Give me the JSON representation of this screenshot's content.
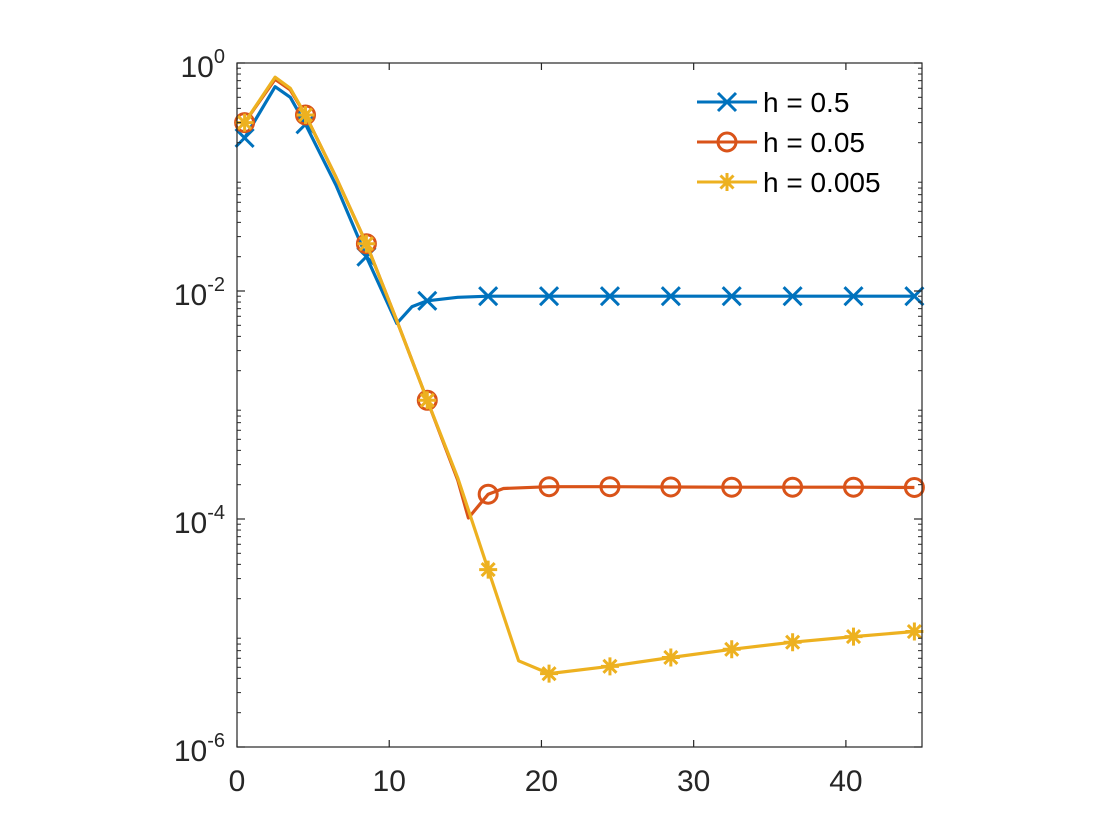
{
  "chart_data": {
    "type": "line",
    "yscale": "log",
    "xlim": [
      0,
      45
    ],
    "ylim": [
      1e-06,
      1
    ],
    "x_ticks": [
      0,
      10,
      20,
      30,
      40
    ],
    "x_tick_labels": [
      "0",
      "10",
      "20",
      "30",
      "40"
    ],
    "y_ticks": [
      {
        "value": 1,
        "base": "10",
        "exp": "0"
      },
      {
        "value": 0.01,
        "base": "10",
        "exp": "-2"
      },
      {
        "value": 0.0001,
        "base": "10",
        "exp": "-4"
      },
      {
        "value": 1e-06,
        "base": "10",
        "exp": "-6"
      }
    ],
    "legend_position": "top-right",
    "series": [
      {
        "name": "h = 0.5",
        "color": "#0072bd",
        "marker": "x",
        "line": [
          [
            0.5,
            0.22
          ],
          [
            2.5,
            0.62
          ],
          [
            3.5,
            0.5
          ],
          [
            4.5,
            0.29
          ],
          [
            6.5,
            0.085
          ],
          [
            8.5,
            0.02
          ],
          [
            10.5,
            0.0052
          ],
          [
            11.5,
            0.0073
          ],
          [
            12.5,
            0.0082
          ],
          [
            14.5,
            0.0088
          ],
          [
            16.5,
            0.009
          ],
          [
            20.5,
            0.009
          ],
          [
            24.5,
            0.009
          ],
          [
            28.5,
            0.009
          ],
          [
            32.5,
            0.009
          ],
          [
            36.5,
            0.009
          ],
          [
            40.5,
            0.009
          ],
          [
            44.5,
            0.009
          ]
        ],
        "markers": [
          [
            0.5,
            0.22
          ],
          [
            4.5,
            0.29
          ],
          [
            8.5,
            0.02
          ],
          [
            12.5,
            0.0082
          ],
          [
            16.5,
            0.009
          ],
          [
            20.5,
            0.009
          ],
          [
            24.5,
            0.009
          ],
          [
            28.5,
            0.009
          ],
          [
            32.5,
            0.009
          ],
          [
            36.5,
            0.009
          ],
          [
            40.5,
            0.009
          ],
          [
            44.5,
            0.009
          ]
        ]
      },
      {
        "name": "h = 0.05",
        "color": "#d95319",
        "marker": "o",
        "line": [
          [
            0.5,
            0.3
          ],
          [
            2.5,
            0.72
          ],
          [
            3.5,
            0.58
          ],
          [
            4.5,
            0.35
          ],
          [
            6.5,
            0.1
          ],
          [
            8.5,
            0.026
          ],
          [
            10.5,
            0.0055
          ],
          [
            12.5,
            0.0011
          ],
          [
            14.5,
            0.00022
          ],
          [
            15.2,
            0.000102
          ],
          [
            16.5,
            0.000165
          ],
          [
            17.5,
            0.000185
          ],
          [
            20.5,
            0.000192
          ],
          [
            24.5,
            0.000192
          ],
          [
            28.5,
            0.000191
          ],
          [
            32.5,
            0.00019
          ],
          [
            36.5,
            0.00019
          ],
          [
            40.5,
            0.00019
          ],
          [
            44.5,
            0.000189
          ]
        ],
        "markers": [
          [
            0.5,
            0.3
          ],
          [
            4.5,
            0.35
          ],
          [
            8.5,
            0.026
          ],
          [
            12.5,
            0.0011
          ],
          [
            16.5,
            0.000165
          ],
          [
            20.5,
            0.000192
          ],
          [
            24.5,
            0.000192
          ],
          [
            28.5,
            0.000191
          ],
          [
            32.5,
            0.00019
          ],
          [
            36.5,
            0.00019
          ],
          [
            40.5,
            0.00019
          ],
          [
            44.5,
            0.000189
          ]
        ]
      },
      {
        "name": "h = 0.005",
        "color": "#edb120",
        "marker": "*",
        "line": [
          [
            0.5,
            0.3
          ],
          [
            2.5,
            0.75
          ],
          [
            3.5,
            0.6
          ],
          [
            4.5,
            0.35
          ],
          [
            6.5,
            0.1
          ],
          [
            8.5,
            0.026
          ],
          [
            10.5,
            0.0055
          ],
          [
            12.5,
            0.0011
          ],
          [
            14.5,
            0.00023
          ],
          [
            16.5,
            3.6e-05
          ],
          [
            18.5,
            5.7e-06
          ],
          [
            20.5,
            4.4e-06
          ],
          [
            24.5,
            5.1e-06
          ],
          [
            28.5,
            6.1e-06
          ],
          [
            32.5,
            7.2e-06
          ],
          [
            36.5,
            8.3e-06
          ],
          [
            40.5,
            9.3e-06
          ],
          [
            44.5,
            1.03e-05
          ]
        ],
        "markers": [
          [
            0.5,
            0.3
          ],
          [
            4.5,
            0.35
          ],
          [
            8.5,
            0.026
          ],
          [
            12.5,
            0.0011
          ],
          [
            16.5,
            3.6e-05
          ],
          [
            20.5,
            4.4e-06
          ],
          [
            24.5,
            5.1e-06
          ],
          [
            28.5,
            6.1e-06
          ],
          [
            32.5,
            7.2e-06
          ],
          [
            36.5,
            8.3e-06
          ],
          [
            40.5,
            9.3e-06
          ],
          [
            44.5,
            1.03e-05
          ]
        ]
      }
    ]
  }
}
